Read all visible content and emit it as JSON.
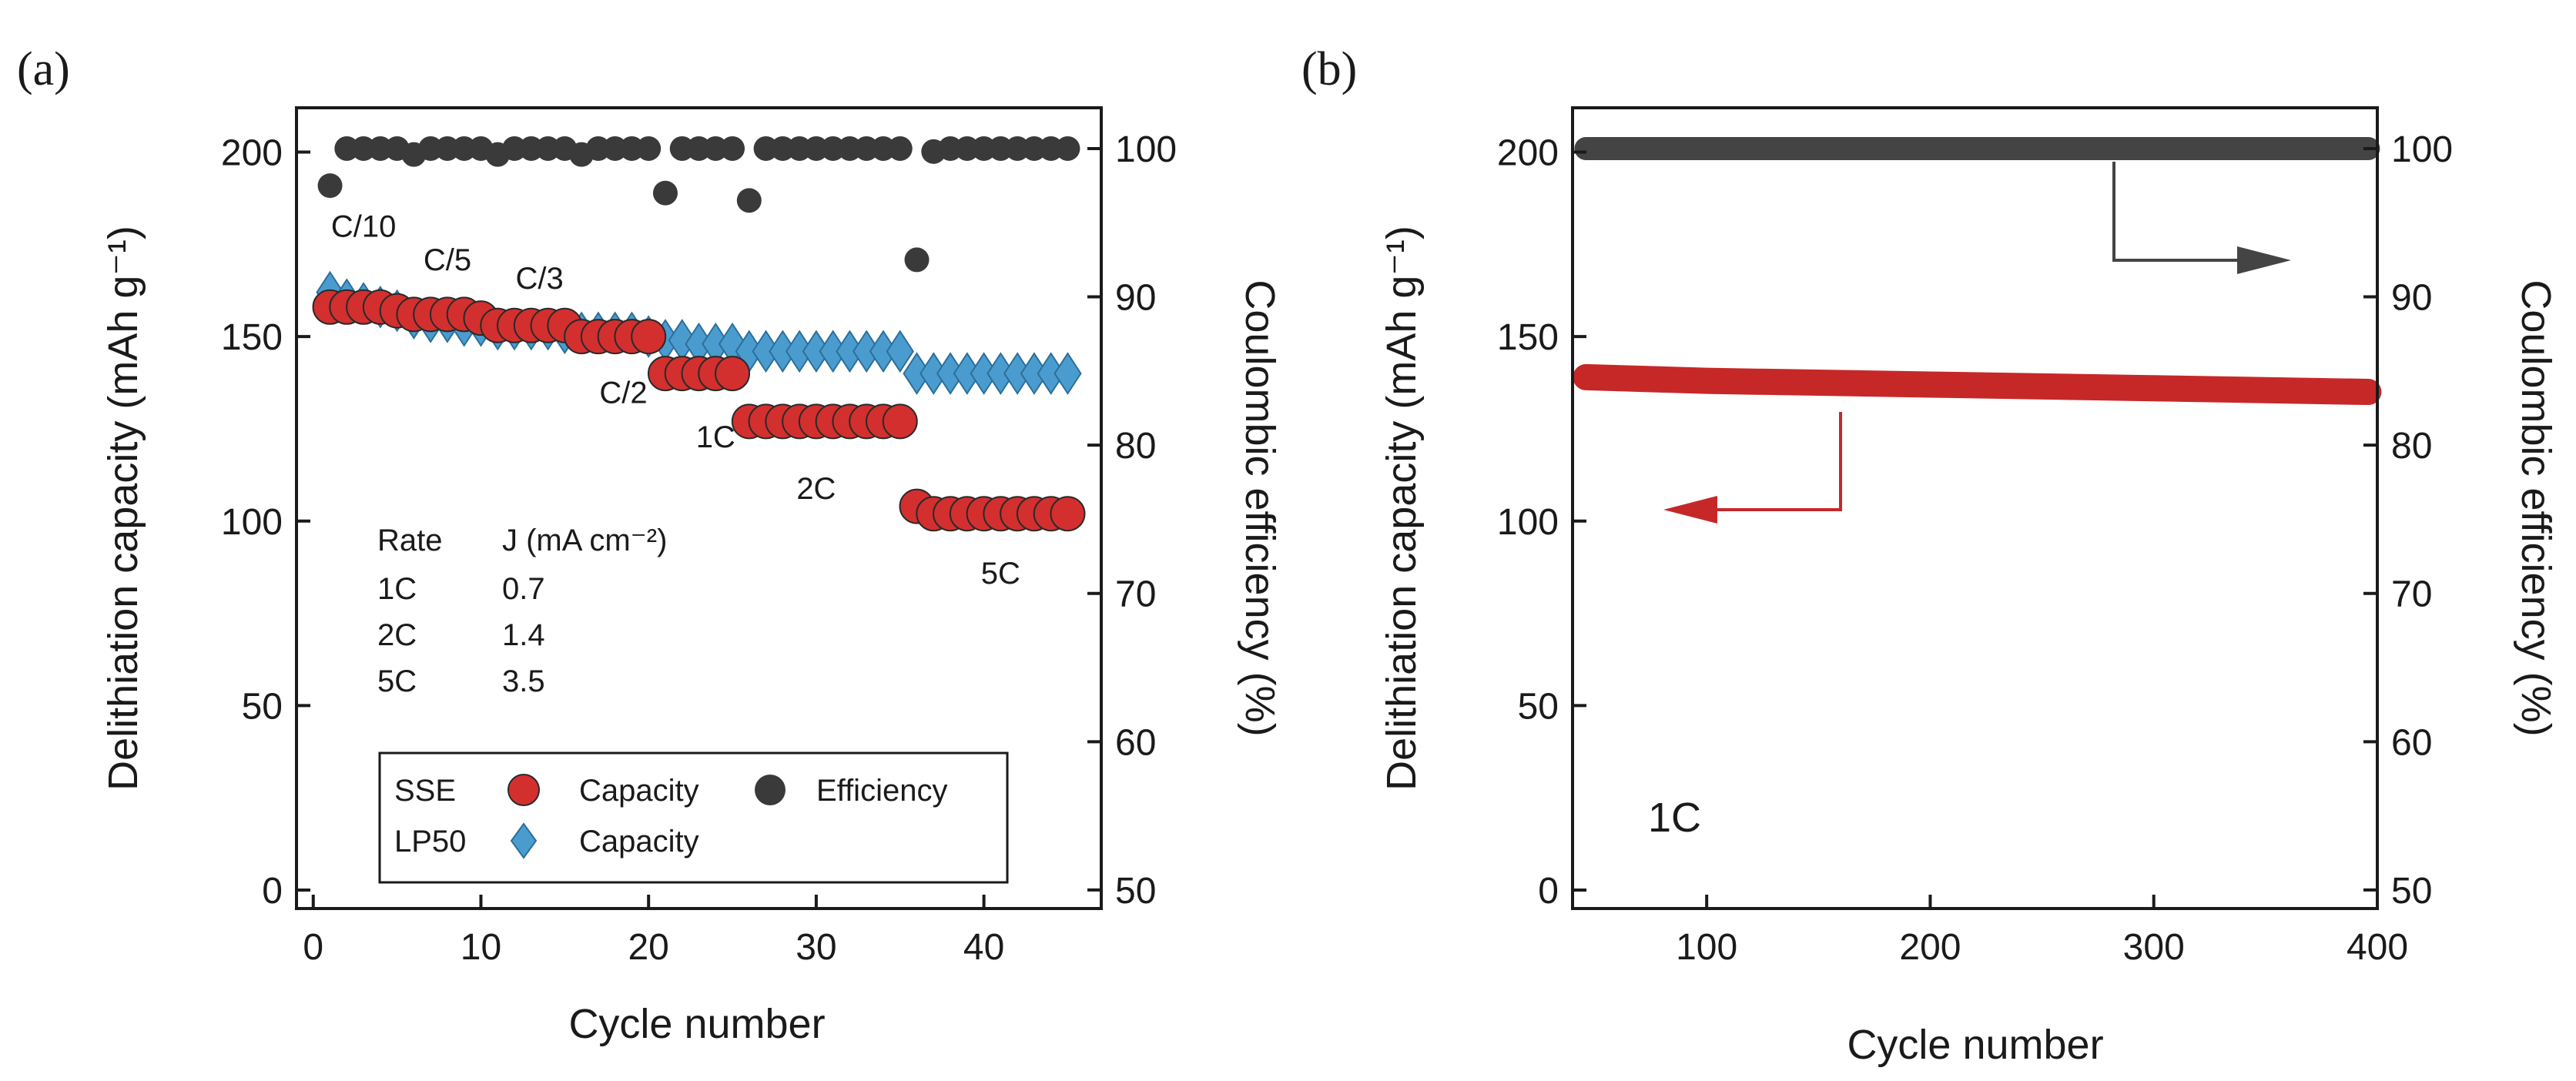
{
  "chart_data": [
    {
      "panel": "(a)",
      "type": "scatter",
      "xlabel": "Cycle number",
      "ylabel": "Delithiation capacity (mAh g⁻¹)",
      "y2label": "Coulombic efficiency (%)",
      "xlim": [
        -1,
        47
      ],
      "ylim": [
        -5,
        212
      ],
      "y2lim": [
        48.75,
        102.75
      ],
      "xticks": [
        0,
        10,
        20,
        30,
        40
      ],
      "yticks": [
        0,
        50,
        100,
        150,
        200
      ],
      "y2ticks": [
        50,
        60,
        70,
        80,
        90,
        100
      ],
      "colors": {
        "sse_capacity": "#d32f2f",
        "lp50_capacity": "#4a9ccf",
        "efficiency": "#3a3a3a"
      },
      "series": [
        {
          "name": "SSE Capacity",
          "axis": "left",
          "marker": "circle",
          "x": [
            1,
            2,
            3,
            4,
            5,
            6,
            7,
            8,
            9,
            10,
            11,
            12,
            13,
            14,
            15,
            16,
            17,
            18,
            19,
            20,
            21,
            22,
            23,
            24,
            25,
            26,
            27,
            28,
            29,
            30,
            31,
            32,
            33,
            34,
            35,
            36,
            37,
            38,
            39,
            40,
            41,
            42,
            43,
            44,
            45
          ],
          "y": [
            158,
            158,
            158,
            158,
            157,
            156,
            156,
            156,
            156,
            155,
            153,
            153,
            153,
            153,
            153,
            150,
            150,
            150,
            150,
            150,
            140,
            140,
            140,
            140,
            140,
            127,
            127,
            127,
            127,
            127,
            127,
            127,
            127,
            127,
            127,
            104,
            102,
            102,
            102,
            102,
            102,
            102,
            102,
            102,
            102
          ]
        },
        {
          "name": "LP50 Capacity",
          "axis": "left",
          "marker": "diamond",
          "x": [
            1,
            2,
            3,
            4,
            5,
            6,
            7,
            8,
            9,
            10,
            11,
            12,
            13,
            14,
            15,
            16,
            17,
            18,
            19,
            20,
            21,
            22,
            23,
            24,
            25,
            26,
            27,
            28,
            29,
            30,
            31,
            32,
            33,
            34,
            35,
            36,
            37,
            38,
            39,
            40,
            41,
            42,
            43,
            44,
            45
          ],
          "y": [
            162,
            160,
            159,
            158,
            157,
            155,
            154,
            154,
            153,
            153,
            152,
            152,
            152,
            152,
            151,
            151,
            151,
            151,
            151,
            150,
            149,
            149,
            148,
            148,
            148,
            146,
            146,
            146,
            146,
            146,
            146,
            146,
            146,
            146,
            146,
            140,
            140,
            140,
            140,
            140,
            140,
            140,
            140,
            140,
            140
          ]
        },
        {
          "name": "Efficiency",
          "axis": "right",
          "marker": "circle",
          "x": [
            1,
            2,
            3,
            4,
            5,
            6,
            7,
            8,
            9,
            10,
            11,
            12,
            13,
            14,
            15,
            16,
            17,
            18,
            19,
            20,
            21,
            22,
            23,
            24,
            25,
            26,
            27,
            28,
            29,
            30,
            31,
            32,
            33,
            34,
            35,
            36,
            37,
            38,
            39,
            40,
            41,
            42,
            43,
            44,
            45
          ],
          "y": [
            97.5,
            100,
            100,
            100,
            100,
            99.6,
            100,
            100,
            100,
            100,
            99.6,
            100,
            100,
            100,
            100,
            99.6,
            100,
            100,
            100,
            100,
            97,
            100,
            100,
            100,
            100,
            96.5,
            100,
            100,
            100,
            100,
            100,
            100,
            100,
            100,
            100,
            92.5,
            99.8,
            100,
            100,
            100,
            100,
            100,
            100,
            100,
            100
          ]
        }
      ],
      "rate_labels": [
        {
          "text": "C/10",
          "x": 3,
          "y": 177
        },
        {
          "text": "C/5",
          "x": 8,
          "y": 168
        },
        {
          "text": "C/3",
          "x": 13.5,
          "y": 163
        },
        {
          "text": "C/2",
          "x": 18.5,
          "y": 132
        },
        {
          "text": "1C",
          "x": 24,
          "y": 120
        },
        {
          "text": "2C",
          "x": 30,
          "y": 106
        },
        {
          "text": "5C",
          "x": 41,
          "y": 83
        }
      ],
      "rate_table": {
        "header": [
          "Rate",
          "J (mA cm⁻²)"
        ],
        "rows": [
          [
            "1C",
            "0.7"
          ],
          [
            "2C",
            "1.4"
          ],
          [
            "5C",
            "3.5"
          ]
        ]
      },
      "legend": {
        "position": "bottom-left",
        "row1_group": "SSE",
        "row1_item1": "Capacity",
        "row1_item2": "Efficiency",
        "row2_group": "LP50",
        "row2_item1": "Capacity"
      }
    },
    {
      "panel": "(b)",
      "type": "line",
      "xlabel": "Cycle number",
      "ylabel": "Delithiation capacity (mAh g⁻¹)",
      "y2label": "Coulombic efficiency (%)",
      "xlim": [
        40,
        400
      ],
      "ylim": [
        -5,
        212
      ],
      "y2lim": [
        48.75,
        102.75
      ],
      "xticks": [
        100,
        200,
        300,
        400
      ],
      "yticks": [
        0,
        50,
        100,
        150,
        200
      ],
      "y2ticks": [
        50,
        60,
        70,
        80,
        90,
        100
      ],
      "colors": {
        "capacity": "#c62828",
        "efficiency": "#444444"
      },
      "series": [
        {
          "name": "Capacity",
          "axis": "left",
          "x": [
            46,
            100,
            200,
            300,
            396
          ],
          "y": [
            139,
            138,
            137,
            136,
            135
          ]
        },
        {
          "name": "Efficiency",
          "axis": "right",
          "x": [
            46,
            396
          ],
          "y": [
            100,
            100
          ]
        }
      ],
      "annotation": "1C"
    }
  ]
}
